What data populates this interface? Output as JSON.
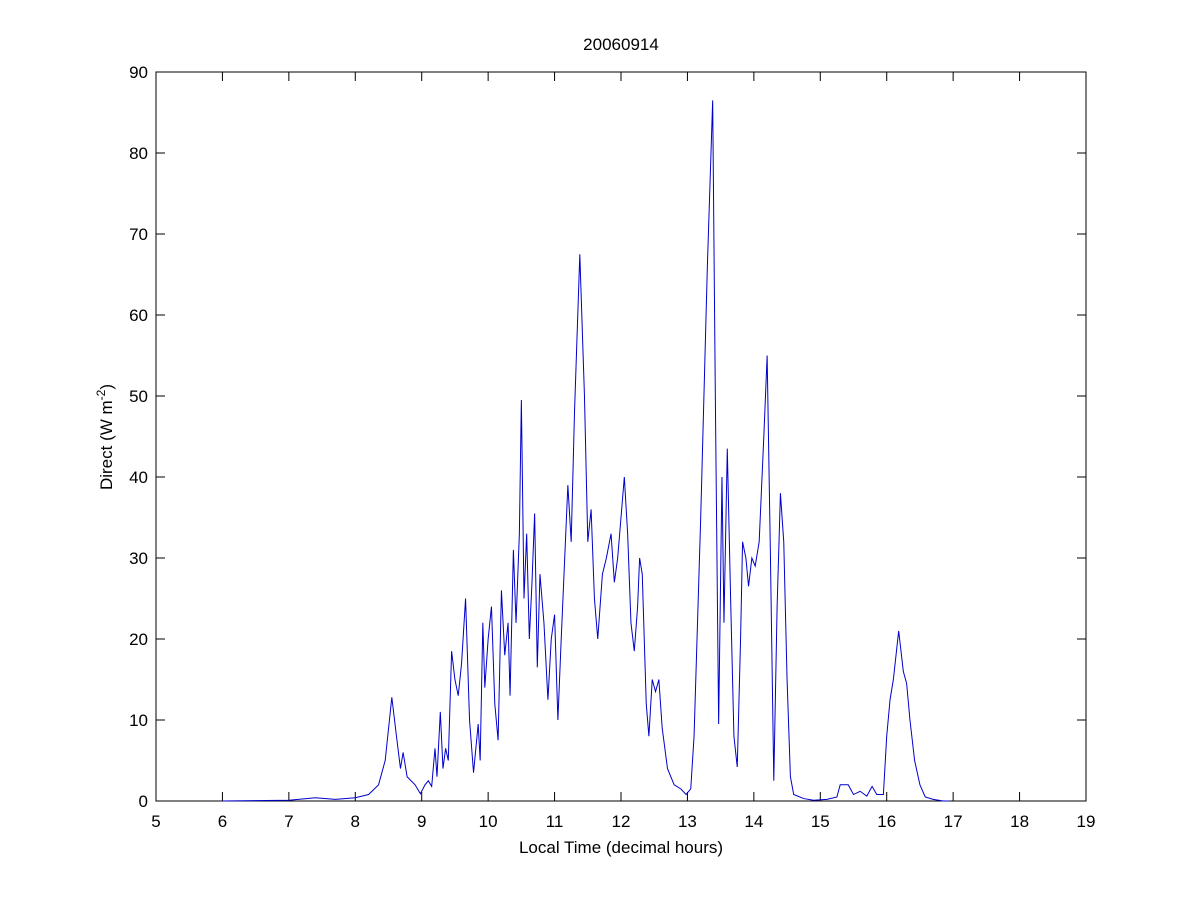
{
  "chart_data": {
    "type": "line",
    "title": "20060914",
    "xlabel": "Local Time (decimal hours)",
    "ylabel": {
      "text": "Direct (W m",
      "superscript": "-2",
      "suffix": ")"
    },
    "xlim": [
      5,
      19
    ],
    "xticks": [
      5,
      6,
      7,
      8,
      9,
      10,
      11,
      12,
      13,
      14,
      15,
      16,
      17,
      18,
      19
    ],
    "ylim": [
      0,
      90
    ],
    "yticks": [
      0,
      10,
      20,
      30,
      40,
      50,
      60,
      70,
      80,
      90
    ],
    "grid": false,
    "series": [
      {
        "color": "#0000cc",
        "x": [
          6.0,
          7.0,
          7.4,
          7.7,
          8.0,
          8.2,
          8.35,
          8.45,
          8.55,
          8.62,
          8.68,
          8.72,
          8.78,
          8.9,
          8.98,
          9.05,
          9.1,
          9.15,
          9.2,
          9.23,
          9.28,
          9.32,
          9.36,
          9.4,
          9.45,
          9.5,
          9.55,
          9.6,
          9.66,
          9.72,
          9.78,
          9.85,
          9.88,
          9.92,
          9.95,
          10.0,
          10.05,
          10.1,
          10.15,
          10.2,
          10.25,
          10.3,
          10.33,
          10.38,
          10.42,
          10.47,
          10.5,
          10.54,
          10.58,
          10.62,
          10.66,
          10.7,
          10.74,
          10.78,
          10.84,
          10.9,
          10.95,
          11.0,
          11.05,
          11.1,
          11.2,
          11.25,
          11.3,
          11.38,
          11.45,
          11.5,
          11.55,
          11.6,
          11.65,
          11.72,
          11.78,
          11.85,
          11.9,
          11.95,
          12.0,
          12.05,
          12.1,
          12.15,
          12.2,
          12.25,
          12.28,
          12.32,
          12.38,
          12.42,
          12.47,
          12.52,
          12.57,
          12.62,
          12.7,
          12.8,
          12.9,
          12.98,
          13.05,
          13.1,
          13.2,
          13.3,
          13.38,
          13.42,
          13.47,
          13.52,
          13.55,
          13.6,
          13.65,
          13.7,
          13.75,
          13.8,
          13.83,
          13.88,
          13.92,
          13.97,
          14.02,
          14.08,
          14.15,
          14.2,
          14.25,
          14.3,
          14.35,
          14.4,
          14.45,
          14.5,
          14.55,
          14.6,
          14.75,
          14.9,
          15.1,
          15.25,
          15.3,
          15.42,
          15.5,
          15.6,
          15.7,
          15.78,
          15.85,
          15.95,
          16.0,
          16.05,
          16.1,
          16.18,
          16.25,
          16.3,
          16.35,
          16.42,
          16.5,
          16.58,
          16.7,
          16.85,
          16.95
        ],
        "values": [
          0,
          0.1,
          0.4,
          0.2,
          0.4,
          0.8,
          2,
          5,
          12.8,
          8,
          4,
          6,
          3,
          2,
          0.9,
          2,
          2.5,
          1.8,
          6.5,
          3,
          11,
          4,
          6.5,
          5,
          18.5,
          15,
          13,
          17,
          25,
          10,
          3.5,
          9.5,
          5,
          22,
          14,
          20,
          24,
          12,
          7.5,
          26,
          18,
          22,
          13,
          31,
          22,
          33,
          49.5,
          25,
          33,
          20,
          27,
          35.5,
          16.5,
          28,
          22,
          12.5,
          20,
          23,
          10,
          20,
          39,
          32,
          48,
          67.5,
          50,
          32,
          36,
          25,
          20,
          28,
          30,
          33,
          27,
          30,
          35,
          40,
          33,
          22,
          18.5,
          24,
          30,
          28,
          12,
          8,
          15,
          13.5,
          15,
          9,
          4,
          2,
          1.5,
          0.8,
          1.5,
          8,
          35,
          66,
          86.5,
          50,
          9.5,
          40,
          22,
          43.5,
          25,
          8,
          4.2,
          20,
          32,
          30,
          26.5,
          30,
          29,
          32,
          45,
          55,
          30,
          2.5,
          24,
          38,
          32,
          15,
          3,
          0.8,
          0.3,
          0.1,
          0.2,
          0.5,
          2,
          2,
          0.8,
          1.2,
          0.6,
          1.8,
          0.8,
          0.8,
          8,
          12.5,
          15,
          21,
          16,
          14.5,
          10,
          5,
          2,
          0.5,
          0.2,
          0,
          0
        ]
      }
    ]
  }
}
